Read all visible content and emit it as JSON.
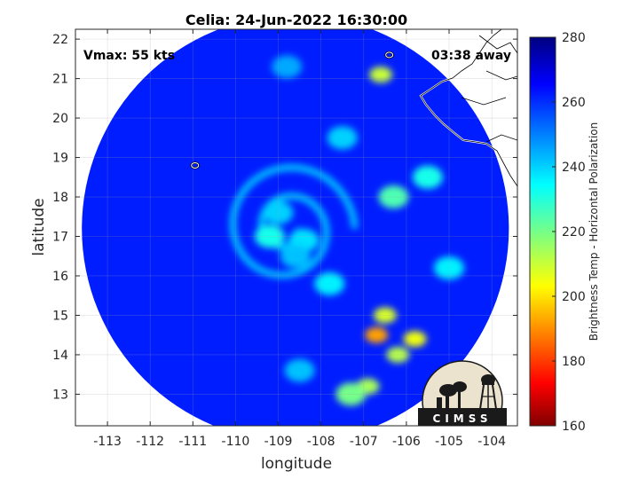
{
  "chart_data": {
    "type": "heatmap",
    "title": "Celia: 24-Jun-2022 16:30:00",
    "xlabel": "longitude",
    "ylabel": "latitude",
    "xlim": [
      -113.75,
      -103.4
    ],
    "ylim": [
      12.2,
      22.25
    ],
    "xticks": [
      -113,
      -112,
      -111,
      -110,
      -109,
      -108,
      -107,
      -106,
      -105,
      -104
    ],
    "yticks": [
      13,
      14,
      15,
      16,
      17,
      18,
      19,
      20,
      21,
      22
    ],
    "grid": true,
    "annotations": {
      "vmax": "Vmax: 55 kts",
      "away": "03:38 away"
    },
    "colorbar": {
      "label": "Brightness Temp - Horizontal Polarization",
      "range": [
        160,
        280
      ],
      "ticks": [
        160,
        180,
        200,
        220,
        240,
        260,
        280
      ],
      "colormap": "jet"
    },
    "swath": {
      "center_lon": -108.6,
      "center_lat": 17.2,
      "radius_deg": 5.0,
      "background_value": 262
    },
    "storm_center": {
      "lon": -108.8,
      "lat": 17.2
    },
    "features": [
      {
        "lon": -109.2,
        "lat": 17.0,
        "value": 232
      },
      {
        "lon": -108.4,
        "lat": 16.9,
        "value": 238
      },
      {
        "lon": -108.6,
        "lat": 16.5,
        "value": 242
      },
      {
        "lon": -109.0,
        "lat": 17.6,
        "value": 240
      },
      {
        "lon": -106.5,
        "lat": 15.0,
        "value": 208
      },
      {
        "lon": -106.7,
        "lat": 14.5,
        "value": 192
      },
      {
        "lon": -105.8,
        "lat": 14.4,
        "value": 205
      },
      {
        "lon": -106.2,
        "lat": 14.0,
        "value": 212
      },
      {
        "lon": -106.9,
        "lat": 13.2,
        "value": 214
      },
      {
        "lon": -107.3,
        "lat": 13.0,
        "value": 220
      },
      {
        "lon": -106.6,
        "lat": 21.1,
        "value": 210
      },
      {
        "lon": -106.3,
        "lat": 18.0,
        "value": 225
      },
      {
        "lon": -105.5,
        "lat": 18.5,
        "value": 232
      },
      {
        "lon": -108.8,
        "lat": 21.3,
        "value": 245
      },
      {
        "lon": -107.5,
        "lat": 19.5,
        "value": 240
      },
      {
        "lon": -107.8,
        "lat": 15.8,
        "value": 236
      },
      {
        "lon": -105.0,
        "lat": 16.2,
        "value": 236
      },
      {
        "lon": -108.5,
        "lat": 13.6,
        "value": 242
      }
    ],
    "islands": [
      {
        "lon": -110.95,
        "lat": 18.8
      },
      {
        "lon": -106.4,
        "lat": 21.6
      }
    ]
  },
  "logo": {
    "text": "CIMSS"
  }
}
